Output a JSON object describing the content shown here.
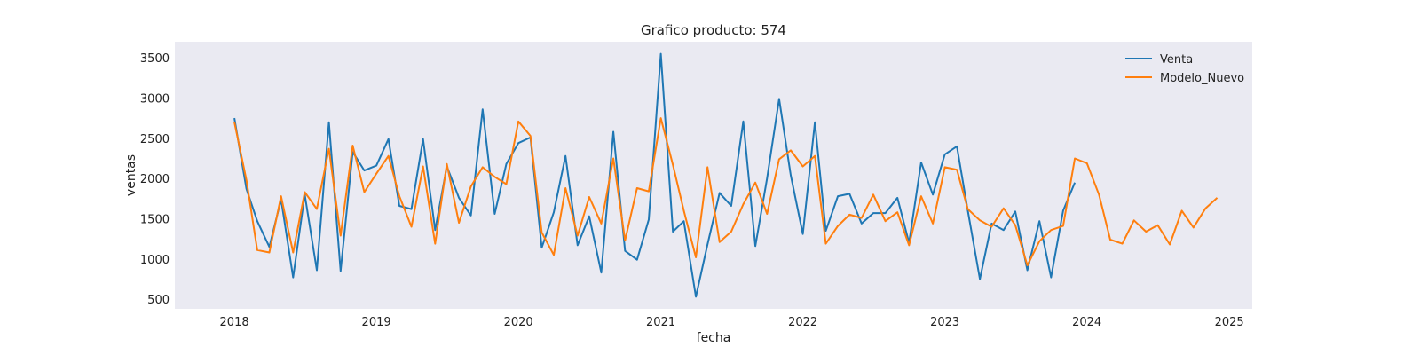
{
  "chart_data": {
    "type": "line",
    "title": "Grafico producto: 574",
    "xlabel": "fecha",
    "ylabel": "ventas",
    "x_axis_type": "date",
    "xlim": [
      "2017-08-01",
      "2025-03-01"
    ],
    "ylim": [
      380,
      3700
    ],
    "x_ticks": [
      "2018-01-01",
      "2019-01-01",
      "2020-01-01",
      "2021-01-01",
      "2022-01-01",
      "2023-01-01",
      "2024-01-01",
      "2025-01-01"
    ],
    "x_tick_labels": [
      "2018",
      "2019",
      "2020",
      "2021",
      "2022",
      "2023",
      "2024",
      "2025"
    ],
    "y_ticks": [
      500,
      1000,
      1500,
      2000,
      2500,
      3000,
      3500
    ],
    "grid": false,
    "legend_position": "top-right",
    "background_color": "#eaeaf2",
    "series": [
      {
        "name": "Venta",
        "color": "#1f77b4",
        "x": [
          "2018-01",
          "2018-02",
          "2018-03",
          "2018-04",
          "2018-05",
          "2018-06",
          "2018-07",
          "2018-08",
          "2018-09",
          "2018-10",
          "2018-11",
          "2018-12",
          "2019-01",
          "2019-02",
          "2019-03",
          "2019-04",
          "2019-05",
          "2019-06",
          "2019-07",
          "2019-08",
          "2019-09",
          "2019-10",
          "2019-11",
          "2019-12",
          "2020-01",
          "2020-02",
          "2020-03",
          "2020-04",
          "2020-05",
          "2020-06",
          "2020-07",
          "2020-08",
          "2020-09",
          "2020-10",
          "2020-11",
          "2020-12",
          "2021-01",
          "2021-02",
          "2021-03",
          "2021-04",
          "2021-05",
          "2021-06",
          "2021-07",
          "2021-08",
          "2021-09",
          "2021-10",
          "2021-11",
          "2021-12",
          "2022-01",
          "2022-02",
          "2022-03",
          "2022-04",
          "2022-05",
          "2022-06",
          "2022-07",
          "2022-08",
          "2022-09",
          "2022-10",
          "2022-11",
          "2022-12",
          "2023-01",
          "2023-02",
          "2023-03",
          "2023-04",
          "2023-05",
          "2023-06",
          "2023-07",
          "2023-08",
          "2023-09",
          "2023-10",
          "2023-11",
          "2023-12"
        ],
        "y": [
          2750,
          1870,
          1470,
          1150,
          1740,
          770,
          1800,
          860,
          2700,
          850,
          2330,
          2100,
          2160,
          2490,
          1660,
          1620,
          2490,
          1360,
          2150,
          1760,
          1540,
          2860,
          1560,
          2180,
          2440,
          2510,
          1140,
          1580,
          2280,
          1170,
          1530,
          830,
          2580,
          1100,
          990,
          1490,
          3550,
          1340,
          1470,
          530,
          1180,
          1820,
          1660,
          2710,
          1160,
          2000,
          2990,
          2040,
          1310,
          2700,
          1350,
          1780,
          1810,
          1440,
          1570,
          1570,
          1760,
          1200,
          2200,
          1800,
          2300,
          2400,
          1600,
          750,
          1440,
          1360,
          1590,
          860,
          1470,
          770,
          1600,
          1950
        ]
      },
      {
        "name": "Modelo_Nuevo",
        "color": "#ff7f0e",
        "x": [
          "2018-01",
          "2018-02",
          "2018-03",
          "2018-04",
          "2018-05",
          "2018-06",
          "2018-07",
          "2018-08",
          "2018-09",
          "2018-10",
          "2018-11",
          "2018-12",
          "2019-01",
          "2019-02",
          "2019-03",
          "2019-04",
          "2019-05",
          "2019-06",
          "2019-07",
          "2019-08",
          "2019-09",
          "2019-10",
          "2019-11",
          "2019-12",
          "2020-01",
          "2020-02",
          "2020-03",
          "2020-04",
          "2020-05",
          "2020-06",
          "2020-07",
          "2020-08",
          "2020-09",
          "2020-10",
          "2020-11",
          "2020-12",
          "2021-01",
          "2021-02",
          "2021-03",
          "2021-04",
          "2021-05",
          "2021-06",
          "2021-07",
          "2021-08",
          "2021-09",
          "2021-10",
          "2021-11",
          "2021-12",
          "2022-01",
          "2022-02",
          "2022-03",
          "2022-04",
          "2022-05",
          "2022-06",
          "2022-07",
          "2022-08",
          "2022-09",
          "2022-10",
          "2022-11",
          "2022-12",
          "2023-01",
          "2023-02",
          "2023-03",
          "2023-04",
          "2023-05",
          "2023-06",
          "2023-07",
          "2023-08",
          "2023-09",
          "2023-10",
          "2023-11",
          "2023-12",
          "2024-01",
          "2024-02",
          "2024-03",
          "2024-04",
          "2024-05",
          "2024-06",
          "2024-07",
          "2024-08",
          "2024-09",
          "2024-10",
          "2024-11",
          "2024-12"
        ],
        "y": [
          2700,
          1980,
          1110,
          1080,
          1780,
          1080,
          1830,
          1620,
          2370,
          1290,
          2410,
          1830,
          2060,
          2280,
          1780,
          1400,
          2150,
          1190,
          2180,
          1450,
          1900,
          2140,
          2020,
          1930,
          2710,
          2530,
          1330,
          1050,
          1880,
          1290,
          1770,
          1440,
          2250,
          1230,
          1880,
          1840,
          2750,
          2170,
          1600,
          1020,
          2140,
          1210,
          1340,
          1680,
          1950,
          1560,
          2240,
          2350,
          2150,
          2280,
          1190,
          1410,
          1550,
          1510,
          1800,
          1470,
          1580,
          1170,
          1780,
          1440,
          2140,
          2110,
          1620,
          1480,
          1400,
          1630,
          1420,
          920,
          1220,
          1360,
          1410,
          2250,
          2190,
          1800,
          1240,
          1190,
          1480,
          1340,
          1420,
          1180,
          1600,
          1390,
          1630,
          1760
        ]
      }
    ]
  }
}
